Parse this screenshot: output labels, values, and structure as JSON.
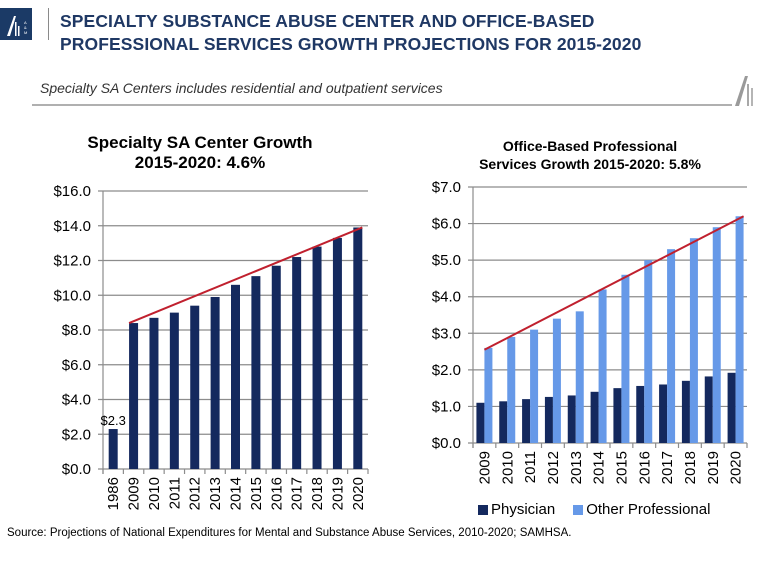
{
  "header": {
    "title_line1": "SPECIALTY SUBSTANCE ABUSE CENTER AND OFFICE-BASED",
    "title_line2": "PROFESSIONAL SERVICES GROWTH PROJECTIONS FOR 2015-2020",
    "subtitle": "Specialty SA Centers includes residential and outpatient services",
    "logo_icon": "alvarez-marsal-logo-icon",
    "brand_color": "#1f3864"
  },
  "source": "Source: Projections of National Expenditures for Mental and Substance Abuse Services, 2010-2020; SAMHSA.",
  "chart_data": [
    {
      "type": "bar",
      "title": "Specialty SA Center Growth 2015-2020: 4.6%",
      "title_line1": "Specialty SA Center Growth",
      "title_line2": "2015-2020: 4.6%",
      "xlabel": "",
      "ylabel": "",
      "categories": [
        "1986",
        "2009",
        "2010",
        "2011",
        "2012",
        "2013",
        "2014",
        "2015",
        "2016",
        "2017",
        "2018",
        "2019",
        "2020"
      ],
      "series": [
        {
          "name": "Specialty SA Center",
          "color": "#14295e",
          "values": [
            2.3,
            8.4,
            8.7,
            9.0,
            9.4,
            9.9,
            10.6,
            11.1,
            11.7,
            12.2,
            12.8,
            13.3,
            13.9
          ]
        }
      ],
      "data_labels": [
        {
          "category": "1986",
          "text": "$2.3"
        }
      ],
      "trendline": {
        "color": "#c0202e",
        "from": {
          "category": "2009",
          "value": 8.4
        },
        "to": {
          "category": "2020",
          "value": 13.9
        }
      },
      "ylim": [
        0,
        16
      ],
      "yticks": [
        "$0.0",
        "$2.0",
        "$4.0",
        "$6.0",
        "$8.0",
        "$10.0",
        "$12.0",
        "$14.0",
        "$16.0"
      ],
      "ytick_values": [
        0,
        2,
        4,
        6,
        8,
        10,
        12,
        14,
        16
      ],
      "grid": true,
      "legend": "none"
    },
    {
      "type": "bar",
      "title": "Office-Based Professional Services Growth 2015-2020: 5.8%",
      "title_line1": "Office-Based Professional",
      "title_line2": "Services Growth 2015-2020: 5.8%",
      "xlabel": "",
      "ylabel": "",
      "categories": [
        "2009",
        "2010",
        "2011",
        "2012",
        "2013",
        "2014",
        "2015",
        "2016",
        "2017",
        "2018",
        "2019",
        "2020"
      ],
      "series": [
        {
          "name": "Physician",
          "color": "#14295e",
          "values": [
            1.1,
            1.14,
            1.2,
            1.26,
            1.3,
            1.4,
            1.5,
            1.56,
            1.6,
            1.7,
            1.82,
            1.92
          ]
        },
        {
          "name": "Other Professional",
          "color": "#6699e8",
          "values": [
            2.6,
            2.9,
            3.1,
            3.4,
            3.6,
            4.2,
            4.6,
            5.0,
            5.3,
            5.6,
            5.9,
            6.2
          ]
        }
      ],
      "trendline": {
        "color": "#c0202e",
        "from": {
          "category": "2009",
          "value": 2.55
        },
        "to": {
          "category": "2020",
          "value": 6.2
        }
      },
      "ylim": [
        0,
        7
      ],
      "yticks": [
        "$0.0",
        "$1.0",
        "$2.0",
        "$3.0",
        "$4.0",
        "$5.0",
        "$6.0",
        "$7.0"
      ],
      "ytick_values": [
        0,
        1,
        2,
        3,
        4,
        5,
        6,
        7
      ],
      "grid": true,
      "legend": "bottom"
    }
  ]
}
